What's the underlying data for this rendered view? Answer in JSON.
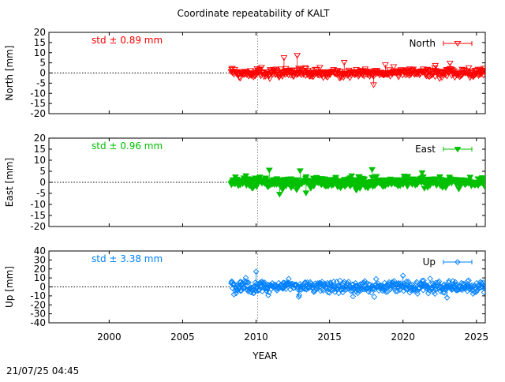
{
  "chart_data": {
    "type": "scatter",
    "title": "Coordinate repeatability of KALT",
    "xlabel": "YEAR",
    "xlim": [
      1995.9,
      2025.6
    ],
    "xticks": [
      2000,
      2005,
      2010,
      2015,
      2020,
      2025
    ],
    "reference_year": 2010.1,
    "timestamp": "21/07/25 04:45",
    "panels": [
      {
        "id": "north",
        "ylabel": "North [mm]",
        "ylim": [
          -20,
          20
        ],
        "yticks": [
          20,
          15,
          10,
          5,
          0,
          -5,
          -10,
          -15,
          -20
        ],
        "series_name": "North",
        "std_label": "std ± 0.89 mm",
        "color": "#ff0000",
        "marker": "triangle-down-open",
        "data_start": 2008.3,
        "data_end": 2025.6,
        "spread": 1.4,
        "outliers": [
          [
            2011.9,
            7.5
          ],
          [
            2012.8,
            8.6
          ],
          [
            2016.0,
            5.2
          ],
          [
            2018.0,
            -5.8
          ],
          [
            2018.8,
            4.0
          ],
          [
            2022.2,
            3.7
          ],
          [
            2023.2,
            4.8
          ]
        ]
      },
      {
        "id": "east",
        "ylabel": "East [mm]",
        "ylim": [
          -20,
          20
        ],
        "yticks": [
          20,
          15,
          10,
          5,
          0,
          -5,
          -10,
          -15,
          -20
        ],
        "series_name": "East",
        "std_label": "std ± 0.96 mm",
        "color": "#00c000",
        "marker": "triangle-down-filled",
        "data_start": 2008.3,
        "data_end": 2025.6,
        "spread": 1.5,
        "outliers": [
          [
            2010.9,
            5.5
          ],
          [
            2011.6,
            -5.4
          ],
          [
            2013.0,
            5.2
          ],
          [
            2013.4,
            -4.8
          ],
          [
            2017.9,
            5.8
          ],
          [
            2021.3,
            4.3
          ]
        ]
      },
      {
        "id": "up",
        "ylabel": "Up [mm]",
        "ylim": [
          -40,
          40
        ],
        "yticks": [
          40,
          30,
          20,
          10,
          0,
          -10,
          -20,
          -30,
          -40
        ],
        "series_name": "Up",
        "std_label": "std ± 3.38 mm",
        "color": "#0080ff",
        "marker": "diamond-open",
        "data_start": 2008.3,
        "data_end": 2025.6,
        "spread": 4.5,
        "outliers": [
          [
            2010.0,
            17.0
          ],
          [
            2012.9,
            -11.0
          ],
          [
            2016.6,
            -10.5
          ],
          [
            2020.0,
            12.5
          ],
          [
            2023.0,
            -12.0
          ]
        ]
      }
    ]
  }
}
